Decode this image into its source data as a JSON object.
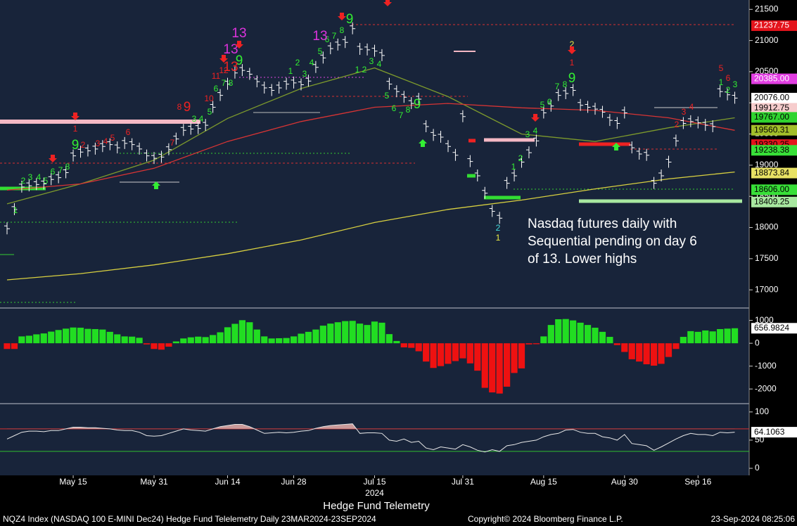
{
  "chart_data": [
    {
      "type": "price-bars",
      "categories": [
        null,
        null,
        null,
        null,
        null,
        null,
        null,
        null,
        null,
        "May 15",
        null,
        null,
        null,
        null,
        null,
        null,
        null,
        null,
        null,
        null,
        "May 31",
        null,
        null,
        null,
        null,
        null,
        null,
        null,
        null,
        null,
        "Jun 14",
        null,
        null,
        null,
        null,
        null,
        null,
        null,
        null,
        "Jun 28",
        null,
        null,
        null,
        null,
        null,
        null,
        null,
        null,
        null,
        null,
        "Jul 15",
        null,
        null,
        null,
        null,
        null,
        null,
        null,
        null,
        null,
        null,
        null,
        "Jul 31",
        null,
        null,
        null,
        null,
        null,
        null,
        null,
        null,
        null,
        null,
        "Aug 15",
        null,
        null,
        null,
        null,
        null,
        null,
        null,
        null,
        null,
        null,
        "Aug 30",
        null,
        null,
        null,
        null,
        null,
        null,
        null,
        null,
        null,
        "Sep 16",
        null,
        null,
        null,
        null,
        null
      ],
      "x_sublabel": "2024",
      "color": "#ffffff",
      "values": [
        17980,
        18290,
        18650,
        18670,
        18690,
        18700,
        18770,
        18800,
        18880,
        19150,
        19210,
        19230,
        19260,
        19300,
        19330,
        19280,
        19350,
        19330,
        19260,
        19150,
        19110,
        19130,
        19250,
        19420,
        19560,
        19580,
        19590,
        19640,
        19930,
        20120,
        20300,
        20480,
        20520,
        20460,
        20340,
        20240,
        20200,
        20240,
        20300,
        20320,
        20290,
        20350,
        20570,
        20720,
        20870,
        20930,
        20970,
        21190,
        20860,
        20850,
        20830,
        20760,
        20300,
        20180,
        20090,
        19990,
        20060,
        19620,
        19480,
        19450,
        19300,
        19160,
        19780,
        19060,
        18830,
        18550,
        18260,
        18150,
        18710,
        18830,
        19050,
        19200,
        19390,
        19840,
        19950,
        20120,
        20150,
        20200,
        19960,
        19930,
        19900,
        19850,
        19720,
        19670,
        19840,
        19280,
        19180,
        19160,
        18710,
        18830,
        19050,
        19390,
        19670,
        19700,
        19680,
        19640,
        19620,
        20180,
        20130,
        20076
      ],
      "lines": [
        {
          "color": "#7d9a2c",
          "x": [
            0,
            10,
            20,
            30,
            40,
            50,
            60,
            70,
            80,
            90,
            99
          ],
          "values": [
            18380,
            18700,
            19080,
            19750,
            20230,
            20560,
            20100,
            19500,
            19380,
            19600,
            19760
          ]
        },
        {
          "color": "#d83434",
          "x": [
            0,
            10,
            20,
            30,
            40,
            50,
            60,
            70,
            80,
            90,
            99
          ],
          "values": [
            18600,
            18700,
            18950,
            19380,
            19700,
            19930,
            19990,
            19920,
            19880,
            19760,
            19560
          ]
        },
        {
          "color": "#d8d040",
          "x": [
            0,
            10,
            20,
            30,
            40,
            50,
            60,
            70,
            80,
            90,
            99
          ],
          "values": [
            17160,
            17260,
            17400,
            17580,
            17800,
            18080,
            18290,
            18440,
            18620,
            18780,
            18890
          ]
        }
      ],
      "ylim": [
        16720,
        21650
      ],
      "yticks": [
        17000,
        17500,
        18000,
        18500,
        19000,
        19500,
        20000,
        20500,
        21000,
        21500
      ],
      "levels": [
        {
          "value": 21237.75,
          "label": "21237.75",
          "color": "#e4141c",
          "text_color": "#ffffff"
        },
        {
          "value": 20385,
          "label": "20385.00",
          "color": "#e23ee2",
          "text_color": "#ffffff"
        },
        {
          "value": 20076,
          "label": "20076.00",
          "color": "#ffffff",
          "text_color": "#000000"
        },
        {
          "value": 19912.75,
          "label": "19912.75",
          "color": "#f6cccc",
          "text_color": "#000000"
        },
        {
          "value": 19767,
          "label": "19767.00",
          "color": "#2fd42f",
          "text_color": "#000000"
        },
        {
          "value": 19560.31,
          "label": "19560.31",
          "color": "#a3bf2a",
          "text_color": "#000000"
        },
        {
          "value": 19330.25,
          "label": "19330.25",
          "color": "#e4141c",
          "text_color": "#000000"
        },
        {
          "value": 19238.38,
          "label": "19238.38",
          "color": "#38e038",
          "text_color": "#000000"
        },
        {
          "value": 18873.84,
          "label": "18873.84",
          "color": "#e8e264",
          "text_color": "#000000"
        },
        {
          "value": 18606,
          "label": "18606.00",
          "color": "#38e038",
          "text_color": "#000000"
        },
        {
          "value": 18409.25,
          "label": "18409.25",
          "color": "#a8e8a0",
          "text_color": "#000000"
        }
      ],
      "annotations": [
        {
          "text": "1",
          "color": "#33ee33"
        },
        {
          "text": "2",
          "color": "#33ee33"
        },
        {
          "text": "3",
          "color": "#33ee33"
        },
        {
          "text": "4",
          "color": "#33ee33"
        },
        {
          "text": "5",
          "color": "#33ee33"
        },
        {
          "text": "6",
          "color": "#33ee33"
        },
        {
          "text": "7",
          "color": "#33ee33"
        },
        {
          "text": "8",
          "color": "#33ee33"
        },
        {
          "text": "9",
          "color": "#33ee33"
        },
        {
          "text": "1",
          "color": "#ee2222"
        },
        {
          "text": "2",
          "color": "#ee2222"
        },
        {
          "text": "3",
          "color": "#ee2222"
        },
        {
          "text": "4",
          "color": "#ee2222"
        },
        {
          "text": "5",
          "color": "#ee2222"
        },
        {
          "text": "6",
          "color": "#ee2222"
        },
        {
          "text": "7",
          "color": "#ee2222"
        },
        {
          "text": "8",
          "color": "#ee2222"
        },
        {
          "text": "9",
          "color": "#ee2222"
        },
        {
          "text": "3",
          "color": "#33ee33"
        },
        {
          "text": "4",
          "color": "#33ee33"
        },
        {
          "text": "5",
          "color": "#33ee33"
        },
        {
          "text": "6",
          "color": "#33ee33"
        },
        {
          "text": "7",
          "color": "#33ee33"
        },
        {
          "text": "8",
          "color": "#33ee33"
        },
        {
          "text": "9",
          "color": "#33ee33"
        },
        {
          "text": "10",
          "color": "#ee2222"
        },
        {
          "text": "11",
          "color": "#ee2222"
        },
        {
          "text": "12",
          "color": "#ee2222"
        },
        {
          "text": "13",
          "color": "#ee2222"
        },
        {
          "text": "13",
          "color": "#dd33dd"
        },
        {
          "text": "13",
          "color": "#dd33dd"
        },
        {
          "text": "1",
          "color": "#33ee33"
        },
        {
          "text": "2",
          "color": "#33ee33"
        },
        {
          "text": "3",
          "color": "#33ee33"
        },
        {
          "text": "4",
          "color": "#33ee33"
        },
        {
          "text": "5",
          "color": "#33ee33"
        },
        {
          "text": "6",
          "color": "#33ee33"
        },
        {
          "text": "7",
          "color": "#33ee33"
        },
        {
          "text": "8",
          "color": "#33ee33"
        },
        {
          "text": "9",
          "color": "#33ee33"
        },
        {
          "text": "13",
          "color": "#dd33dd"
        },
        {
          "text": "1",
          "color": "#33ee33"
        },
        {
          "text": "2",
          "color": "#33ee33"
        },
        {
          "text": "3",
          "color": "#33ee33"
        },
        {
          "text": "4",
          "color": "#33ee33"
        },
        {
          "text": "5",
          "color": "#33ee33"
        },
        {
          "text": "6",
          "color": "#33ee33"
        },
        {
          "text": "7",
          "color": "#33ee33"
        },
        {
          "text": "8",
          "color": "#33ee33"
        },
        {
          "text": "9",
          "color": "#33ee33"
        },
        {
          "text": "2",
          "color": "#44dddd"
        },
        {
          "text": "1",
          "color": "#eeee44"
        },
        {
          "text": "1",
          "color": "#33ee33"
        },
        {
          "text": "2",
          "color": "#33ee33"
        },
        {
          "text": "3",
          "color": "#33ee33"
        },
        {
          "text": "4",
          "color": "#33ee33"
        },
        {
          "text": "5",
          "color": "#33ee33"
        },
        {
          "text": "6",
          "color": "#33ee33"
        },
        {
          "text": "7",
          "color": "#33ee33"
        },
        {
          "text": "8",
          "color": "#33ee33"
        },
        {
          "text": "9",
          "color": "#33ee33"
        },
        {
          "text": "2",
          "color": "#eeee44"
        },
        {
          "text": "1",
          "color": "#ee2222"
        },
        {
          "text": "2",
          "color": "#ee2222"
        },
        {
          "text": "3",
          "color": "#ee2222"
        },
        {
          "text": "4",
          "color": "#ee2222"
        },
        {
          "text": "5",
          "color": "#ee2222"
        },
        {
          "text": "6",
          "color": "#ee2222"
        },
        {
          "text": "1",
          "color": "#33ee33"
        },
        {
          "text": "2",
          "color": "#33ee33"
        },
        {
          "text": "3",
          "color": "#33ee33"
        }
      ],
      "note": [
        "Nasdaq futures daily with",
        "Sequential pending on day 6",
        "of 13.  Lower highs"
      ]
    },
    {
      "type": "histogram",
      "up_color": "#22dd22",
      "down_color": "#ee1111",
      "values": [
        -250,
        -250,
        300,
        330,
        390,
        430,
        510,
        580,
        640,
        690,
        680,
        630,
        620,
        600,
        500,
        390,
        300,
        290,
        240,
        -50,
        -250,
        -280,
        -150,
        80,
        210,
        260,
        290,
        270,
        360,
        480,
        700,
        850,
        1010,
        920,
        600,
        300,
        210,
        220,
        230,
        300,
        420,
        500,
        600,
        770,
        860,
        920,
        970,
        980,
        860,
        800,
        950,
        900,
        400,
        100,
        -180,
        -200,
        -350,
        -800,
        -1080,
        -1000,
        -900,
        -780,
        -660,
        -880,
        -1200,
        -1950,
        -2150,
        -2200,
        -1900,
        -1300,
        -1100,
        -50,
        -40,
        300,
        800,
        1050,
        1060,
        1000,
        900,
        800,
        680,
        500,
        280,
        -80,
        -380,
        -700,
        -800,
        -920,
        -980,
        -900,
        -600,
        -250,
        280,
        530,
        500,
        560,
        520,
        620,
        640,
        656.9824
      ],
      "ylim": [
        -2580,
        1450
      ],
      "yticks": [
        -2000,
        -1000,
        0,
        1000
      ]
    },
    {
      "type": "line",
      "color": "#e8e8e8",
      "values": [
        52,
        58,
        64,
        66,
        66,
        65,
        67,
        67,
        70,
        73,
        73,
        72,
        72,
        71,
        70,
        68,
        67,
        67,
        64,
        58,
        57,
        58,
        62,
        66,
        70,
        68,
        67,
        66,
        70,
        74,
        76,
        78,
        78,
        74,
        68,
        62,
        63,
        64,
        63,
        64,
        66,
        67,
        71,
        74,
        76,
        77,
        78,
        79,
        62,
        63,
        63,
        62,
        50,
        48,
        52,
        46,
        48,
        36,
        33,
        38,
        36,
        34,
        42,
        38,
        32,
        29,
        33,
        30,
        40,
        42,
        46,
        48,
        50,
        56,
        60,
        62,
        68,
        69,
        64,
        62,
        62,
        56,
        54,
        50,
        60,
        44,
        42,
        40,
        32,
        38,
        45,
        52,
        58,
        62,
        60,
        60,
        58,
        64,
        63,
        64.1063
      ],
      "ref_lines": [
        {
          "value": 70,
          "color": "#d83030"
        },
        {
          "value": 30,
          "color": "#2fbf2f"
        }
      ],
      "fill_color": "#c99a9a",
      "ylim": [
        -12.5,
        111
      ],
      "yticks": [
        0,
        50,
        100
      ]
    }
  ],
  "footer": {
    "title": "Hedge Fund Telemetry",
    "left": "NQZ4 Index (NASDAQ 100 E-MINI Dec24) Hedge Fund Telelemetry  Daily 23MAR2024-23SEP2024",
    "copyright": "Copyright© 2024 Bloomberg Finance L.P.",
    "timestamp": "23-Sep-2024 08:25:06"
  }
}
